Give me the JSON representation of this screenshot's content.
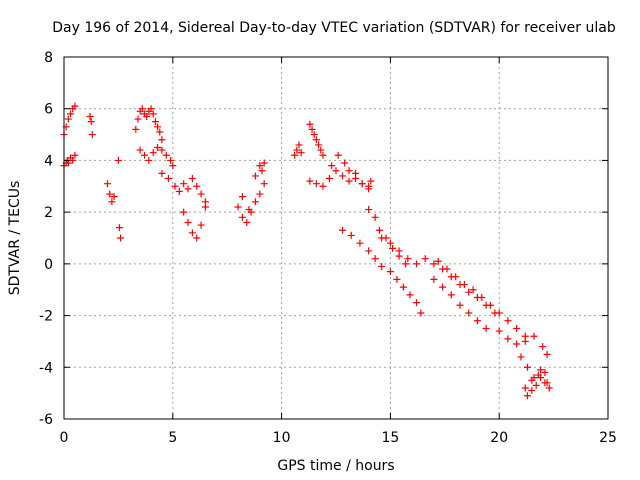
{
  "chart_data": {
    "type": "scatter",
    "title": "Day 196 of 2014, Sidereal Day-to-day VTEC variation (SDTVAR) for receiver ulab",
    "xlabel": "GPS time / hours",
    "ylabel": "SDTVAR / TECUs",
    "xlim": [
      0,
      25
    ],
    "ylim": [
      -6,
      8
    ],
    "xticks": [
      0,
      5,
      10,
      15,
      20,
      25
    ],
    "xtick_labels": [
      "0",
      "5",
      "10",
      "15",
      "20",
      "25"
    ],
    "yticks": [
      -6,
      -4,
      -2,
      0,
      2,
      4,
      6,
      8
    ],
    "ytick_labels": [
      "-6",
      "-4",
      "-2",
      "0",
      "2",
      "4",
      "6",
      "8"
    ],
    "grid": true,
    "marker": "plus",
    "color": "#ff0000",
    "series": [
      {
        "name": "SDTVAR",
        "x": [
          0.0,
          0.1,
          0.15,
          0.2,
          0.3,
          0.4,
          0.5,
          0.0,
          0.1,
          0.2,
          0.3,
          0.4,
          0.5,
          1.2,
          1.25,
          1.3,
          2.0,
          2.1,
          2.2,
          2.3,
          2.5,
          2.55,
          2.6,
          3.3,
          3.4,
          3.5,
          3.6,
          3.7,
          3.8,
          3.9,
          4.0,
          4.1,
          4.2,
          4.3,
          4.4,
          4.5,
          3.5,
          3.7,
          3.9,
          4.1,
          4.3,
          4.5,
          4.7,
          4.9,
          5.0,
          4.5,
          4.8,
          5.1,
          5.3,
          5.5,
          5.7,
          5.9,
          6.1,
          6.3,
          6.5,
          5.5,
          5.7,
          5.9,
          6.1,
          6.3,
          6.5,
          8.0,
          8.2,
          8.4,
          8.6,
          8.8,
          9.0,
          9.2,
          8.2,
          8.5,
          8.8,
          9.0,
          9.1,
          9.2,
          10.6,
          10.7,
          10.8,
          10.9,
          11.3,
          11.4,
          11.5,
          11.6,
          11.7,
          11.8,
          11.9,
          11.3,
          11.6,
          11.9,
          12.2,
          12.5,
          12.8,
          13.1,
          13.4,
          13.7,
          14.0,
          14.1,
          12.3,
          12.6,
          12.9,
          13.1,
          13.4,
          13.7,
          14.0,
          14.0,
          14.3,
          14.5,
          14.8,
          15.1,
          15.4,
          15.7,
          12.8,
          13.2,
          13.6,
          14.0,
          14.3,
          14.6,
          15.0,
          15.3,
          15.6,
          15.9,
          16.2,
          16.4,
          14.6,
          15.0,
          15.4,
          15.8,
          16.2,
          16.6,
          17.0,
          17.4,
          17.8,
          18.2,
          18.6,
          19.0,
          19.4,
          19.8,
          17.0,
          17.4,
          17.8,
          18.2,
          18.6,
          19.0,
          19.4,
          17.2,
          17.6,
          18.0,
          18.4,
          18.8,
          19.2,
          19.6,
          20.0,
          20.4,
          20.8,
          21.2,
          20.0,
          20.4,
          20.8,
          21.2,
          21.6,
          22.0,
          22.2,
          21.0,
          21.3,
          21.6,
          21.9,
          22.2,
          21.2,
          21.5,
          21.8,
          22.1,
          22.3,
          21.3,
          21.5,
          21.7,
          21.9,
          22.1
        ],
        "y": [
          3.8,
          3.9,
          4.0,
          3.9,
          4.1,
          4.0,
          4.2,
          5.0,
          5.3,
          5.6,
          5.8,
          6.0,
          6.1,
          5.7,
          5.5,
          5.0,
          3.1,
          2.7,
          2.4,
          2.6,
          4.0,
          1.4,
          1.0,
          5.2,
          5.6,
          5.9,
          6.0,
          5.8,
          5.7,
          5.9,
          6.0,
          5.8,
          5.5,
          5.3,
          5.1,
          4.8,
          4.4,
          4.2,
          4.0,
          4.3,
          4.5,
          4.4,
          4.2,
          4.0,
          3.8,
          3.5,
          3.3,
          3.0,
          2.8,
          3.1,
          2.9,
          3.3,
          3.0,
          2.7,
          2.4,
          2.0,
          1.6,
          1.2,
          1.0,
          1.5,
          2.2,
          2.2,
          1.8,
          1.6,
          2.0,
          2.4,
          2.7,
          3.1,
          2.6,
          2.1,
          3.4,
          3.8,
          3.6,
          3.9,
          4.2,
          4.4,
          4.6,
          4.3,
          5.4,
          5.2,
          5.0,
          4.8,
          4.6,
          4.4,
          4.2,
          3.2,
          3.1,
          3.0,
          3.3,
          3.6,
          3.4,
          3.2,
          3.5,
          3.1,
          3.0,
          3.2,
          3.8,
          4.2,
          3.9,
          3.6,
          3.3,
          3.1,
          2.9,
          2.1,
          1.8,
          1.3,
          1.0,
          0.6,
          0.3,
          0.0,
          1.3,
          1.1,
          0.8,
          0.5,
          0.2,
          -0.1,
          -0.3,
          -0.6,
          -0.9,
          -1.2,
          -1.5,
          -1.9,
          1.0,
          0.8,
          0.5,
          0.2,
          0.0,
          0.2,
          0.0,
          -0.2,
          -0.5,
          -0.8,
          -1.1,
          -1.3,
          -1.6,
          -1.9,
          -0.6,
          -0.9,
          -1.2,
          -1.6,
          -1.9,
          -2.2,
          -2.5,
          0.1,
          -0.2,
          -0.5,
          -0.8,
          -1.0,
          -1.3,
          -1.6,
          -1.9,
          -2.2,
          -2.5,
          -2.8,
          -2.6,
          -2.9,
          -3.1,
          -3.0,
          -2.8,
          -3.2,
          -3.5,
          -3.6,
          -4.0,
          -4.4,
          -4.1,
          -4.6,
          -4.8,
          -4.5,
          -4.3,
          -4.6,
          -4.8,
          -5.1,
          -4.9,
          -4.7,
          -4.4,
          -4.2
        ]
      }
    ]
  }
}
